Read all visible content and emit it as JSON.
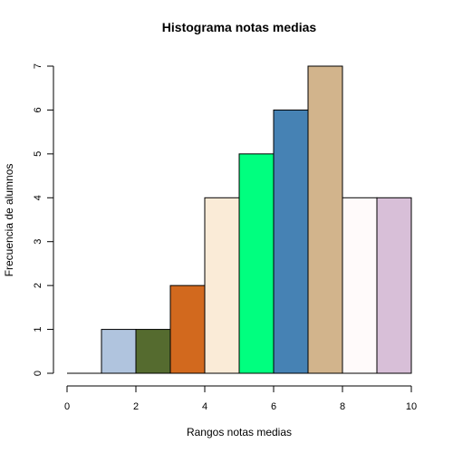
{
  "chart_data": {
    "type": "bar",
    "title": "Histograma notas medias",
    "xlabel": "Rangos notas medias",
    "ylabel": "Frecuencia de alumnos",
    "bins": [
      {
        "x0": 0,
        "x1": 1,
        "value": 0,
        "color": "#FFFFFF"
      },
      {
        "x0": 1,
        "x1": 2,
        "value": 1,
        "color": "#B0C4DE"
      },
      {
        "x0": 2,
        "x1": 3,
        "value": 1,
        "color": "#556B2F"
      },
      {
        "x0": 3,
        "x1": 4,
        "value": 2,
        "color": "#D2691E"
      },
      {
        "x0": 4,
        "x1": 5,
        "value": 4,
        "color": "#FAEBD7"
      },
      {
        "x0": 5,
        "x1": 6,
        "value": 5,
        "color": "#00FF7F"
      },
      {
        "x0": 6,
        "x1": 7,
        "value": 6,
        "color": "#4682B4"
      },
      {
        "x0": 7,
        "x1": 8,
        "value": 7,
        "color": "#D2B48C"
      },
      {
        "x0": 8,
        "x1": 9,
        "value": 4,
        "color": "#FFFAFA"
      },
      {
        "x0": 9,
        "x1": 10,
        "value": 4,
        "color": "#D8BFD8"
      }
    ],
    "xlim": [
      0,
      10
    ],
    "ylim": [
      0,
      7
    ],
    "x_ticks": [
      "0",
      "2",
      "4",
      "6",
      "8",
      "10"
    ],
    "y_ticks": [
      "0",
      "1",
      "2",
      "3",
      "4",
      "5",
      "6",
      "7"
    ],
    "grid": false,
    "legend": "none"
  }
}
